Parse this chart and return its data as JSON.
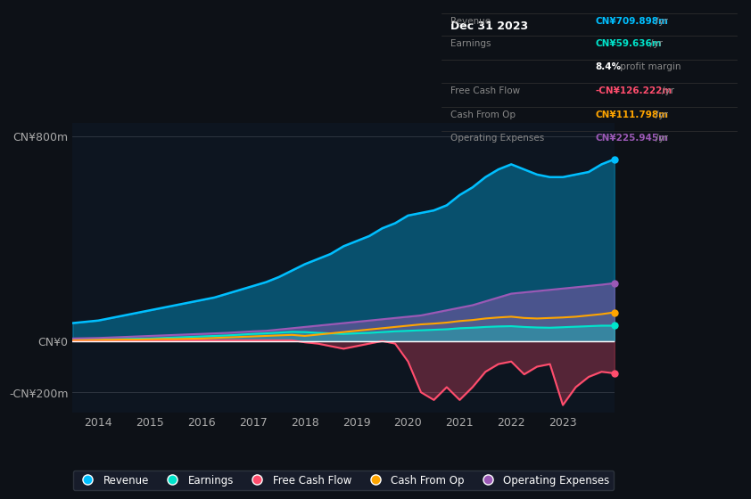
{
  "bg_color": "#0d1117",
  "plot_bg_color": "#0d1520",
  "title_box": "Dec 31 2023",
  "table_data": {
    "Revenue": {
      "value": "CN¥709.898m /yr",
      "color": "#00bfff"
    },
    "Earnings": {
      "value": "CN¥59.636m /yr",
      "color": "#00e5cc"
    },
    "profit_margin": {
      "value": "8.4% profit margin",
      "color": "#ffffff"
    },
    "Free Cash Flow": {
      "value": "-CN¥126.222m /yr",
      "color": "#ff4d6d"
    },
    "Cash From Op": {
      "value": "CN¥111.798m /yr",
      "color": "#ffa500"
    },
    "Operating Expenses": {
      "value": "CN¥225.945m /yr",
      "color": "#9b59b6"
    }
  },
  "years": [
    2013.5,
    2014,
    2014.25,
    2014.5,
    2014.75,
    2015,
    2015.25,
    2015.5,
    2015.75,
    2016,
    2016.25,
    2016.5,
    2016.75,
    2017,
    2017.25,
    2017.5,
    2017.75,
    2018,
    2018.25,
    2018.5,
    2018.75,
    2019,
    2019.25,
    2019.5,
    2019.75,
    2020,
    2020.25,
    2020.5,
    2020.75,
    2021,
    2021.25,
    2021.5,
    2021.75,
    2022,
    2022.25,
    2022.5,
    2022.75,
    2023,
    2023.25,
    2023.5,
    2023.75,
    2024
  ],
  "revenue": [
    70,
    80,
    90,
    100,
    110,
    120,
    130,
    140,
    150,
    160,
    170,
    185,
    200,
    215,
    230,
    250,
    275,
    300,
    320,
    340,
    370,
    390,
    410,
    440,
    460,
    490,
    500,
    510,
    530,
    570,
    600,
    640,
    670,
    690,
    670,
    650,
    640,
    640,
    650,
    660,
    690,
    710
  ],
  "earnings": [
    5,
    6,
    7,
    8,
    9,
    10,
    12,
    14,
    16,
    18,
    20,
    22,
    25,
    28,
    30,
    33,
    36,
    35,
    32,
    30,
    28,
    30,
    32,
    35,
    38,
    40,
    42,
    44,
    46,
    50,
    52,
    55,
    57,
    58,
    55,
    53,
    52,
    54,
    56,
    58,
    60,
    60
  ],
  "free_cash_flow": [
    2,
    2,
    2,
    2,
    2,
    2,
    2,
    3,
    3,
    3,
    3,
    3,
    3,
    3,
    3,
    3,
    3,
    -5,
    -10,
    -20,
    -30,
    -20,
    -10,
    0,
    -10,
    -80,
    -200,
    -230,
    -180,
    -230,
    -180,
    -120,
    -90,
    -80,
    -130,
    -100,
    -90,
    -250,
    -180,
    -140,
    -120,
    -126
  ],
  "cash_from_op": [
    5,
    5,
    5,
    6,
    6,
    7,
    8,
    8,
    9,
    10,
    12,
    14,
    16,
    18,
    20,
    22,
    24,
    20,
    25,
    30,
    35,
    40,
    45,
    50,
    55,
    60,
    65,
    68,
    72,
    78,
    82,
    88,
    92,
    95,
    90,
    88,
    90,
    92,
    95,
    100,
    105,
    112
  ],
  "operating_expenses": [
    10,
    12,
    14,
    16,
    18,
    20,
    22,
    24,
    26,
    28,
    30,
    32,
    35,
    38,
    40,
    45,
    50,
    55,
    60,
    65,
    70,
    75,
    80,
    85,
    90,
    95,
    100,
    110,
    120,
    130,
    140,
    155,
    170,
    185,
    190,
    195,
    200,
    205,
    210,
    215,
    220,
    226
  ],
  "revenue_color": "#00bfff",
  "earnings_color": "#00e5cc",
  "free_cash_flow_color": "#ff4d6d",
  "cash_from_op_color": "#ffa500",
  "operating_expenses_color": "#9b59b6",
  "ylim_top": 850,
  "ylim_bottom": -280,
  "y_ticks": [
    800,
    0,
    -200
  ],
  "y_tick_labels": [
    "CN¥800m",
    "CN¥0",
    "-CN¥200m"
  ],
  "x_ticks": [
    2014,
    2015,
    2016,
    2017,
    2018,
    2019,
    2020,
    2021,
    2022,
    2023
  ],
  "legend": [
    {
      "label": "Revenue",
      "color": "#00bfff"
    },
    {
      "label": "Earnings",
      "color": "#00e5cc"
    },
    {
      "label": "Free Cash Flow",
      "color": "#ff4d6d"
    },
    {
      "label": "Cash From Op",
      "color": "#ffa500"
    },
    {
      "label": "Operating Expenses",
      "color": "#9b59b6"
    }
  ]
}
